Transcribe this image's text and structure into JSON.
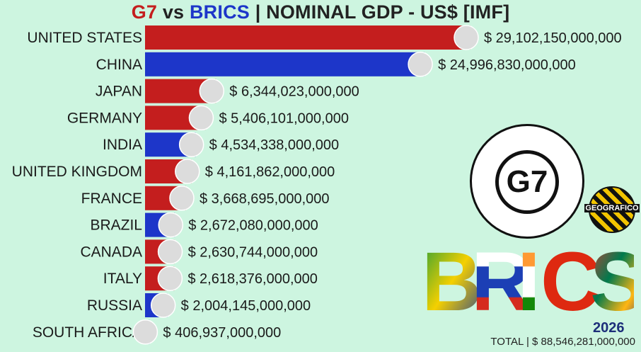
{
  "title": {
    "part1": "G7",
    "part2": " vs ",
    "part3": "BRICS",
    "part4": " | NOMINAL GDP - US$ [IMF]"
  },
  "year": "2026",
  "total_label": "TOTAL | $ 88,546,281,000,000",
  "logo": {
    "g7_text": "G7",
    "channel_text": "GEOGRAFICO",
    "brics_text": "BRICS"
  },
  "colors": {
    "g7": "#c41e1e",
    "brics": "#1d36c9",
    "background": "#cdf5e0"
  },
  "chart_data": {
    "type": "bar",
    "orientation": "horizontal",
    "title": "G7 vs BRICS | NOMINAL GDP - US$ [IMF]",
    "categories": [
      "UNITED STATES",
      "CHINA",
      "JAPAN",
      "GERMANY",
      "INDIA",
      "UNITED KINGDOM",
      "FRANCE",
      "BRAZIL",
      "CANADA",
      "ITALY",
      "RUSSIA",
      "SOUTH AFRICA"
    ],
    "values": [
      29102150000000,
      24996830000000,
      6344023000000,
      5406101000000,
      4534338000000,
      4161862000000,
      3668695000000,
      2672080000000,
      2630744000000,
      2618376000000,
      2004145000000,
      406937000000
    ],
    "value_labels": [
      "$ 29,102,150,000,000",
      "$ 24,996,830,000,000",
      "$ 6,344,023,000,000",
      "$ 5,406,101,000,000",
      "$ 4,534,338,000,000",
      "$ 4,161,862,000,000",
      "$ 3,668,695,000,000",
      "$ 2,672,080,000,000",
      "$ 2,630,744,000,000",
      "$ 2,618,376,000,000",
      "$ 2,004,145,000,000",
      "$ 406,937,000,000"
    ],
    "groups": [
      "G7",
      "BRICS",
      "G7",
      "G7",
      "BRICS",
      "G7",
      "G7",
      "BRICS",
      "G7",
      "G7",
      "BRICS",
      "BRICS"
    ],
    "flags": [
      "us-flag",
      "china-flag",
      "japan-flag",
      "germany-flag",
      "india-flag",
      "uk-flag",
      "france-flag",
      "brazil-flag",
      "canada-flag",
      "italy-flag",
      "russia-flag",
      "south-africa-flag"
    ],
    "xlim": [
      0,
      29102150000000
    ],
    "grid": false,
    "legend": "none"
  }
}
